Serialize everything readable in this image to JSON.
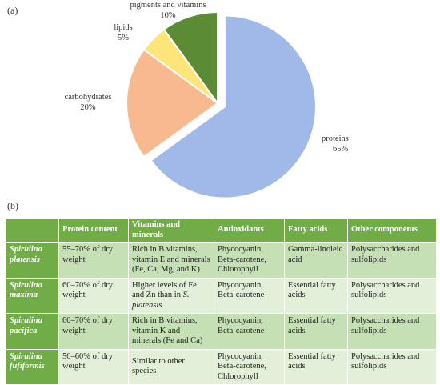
{
  "panel_a_label": "(a)",
  "panel_b_label": "(b)",
  "chart_data": {
    "type": "pie",
    "slices": [
      {
        "name": "proteins",
        "value": 65,
        "label": "65%",
        "color": "#a0b9e8"
      },
      {
        "name": "carbohydrates",
        "value": 20,
        "label": "20%",
        "color": "#f8b98e"
      },
      {
        "name": "lipids",
        "value": 5,
        "label": "5%",
        "color": "#fde57a"
      },
      {
        "name": "pigments and vitamins",
        "value": 10,
        "label": "10%",
        "color": "#5b8c35"
      }
    ],
    "exploded_slice": "proteins",
    "legend": "none"
  },
  "table": {
    "headers": [
      "",
      "Protein content",
      "Vitamins and minerals",
      "Antioxidants",
      "Fatty acids",
      "Other components"
    ],
    "rows": [
      {
        "species": "Spirulina platensis",
        "protein": "55–70% of dry weight",
        "vitamins": "Rich in B vitamins, vitamin E and minerals (Fe, Ca, Mg, and K)",
        "antioxidants": "Phycocyanin, Beta-carotene, Chlorophyll",
        "fatty": "Gamma-linoleic acid",
        "other": "Polysaccharides and sulfolipids"
      },
      {
        "species": "Spirulina maxima",
        "protein": "60–70% of dry weight",
        "vitamins_prefix": "Higher levels of Fe and Zn than in ",
        "vitamins_italic": "S. platensis",
        "antioxidants": "Phycocyanin, Beta-carotene",
        "fatty": "Essential fatty acids",
        "other": "Polysaccharides and sulfolipids"
      },
      {
        "species": "Spirulina pacifica",
        "protein": "60–70% of dry weight",
        "vitamins": "Rich in B vitamins, vitamin K and minerals (Fe and Ca)",
        "antioxidants": "Phycocyanin, Beta-carotene",
        "fatty": "Essential fatty acids",
        "other": "Polysaccharides and sulfolipids"
      },
      {
        "species": "Spirulina fufiformis",
        "protein": "50–60% of dry weight",
        "vitamins": "Similar to other species",
        "antioxidants": "Phycocyanin, Beta-carotene, Chlorophyll",
        "fatty": "Essential fatty acids",
        "other": "Polysaccharides and sulfolipids"
      }
    ]
  }
}
